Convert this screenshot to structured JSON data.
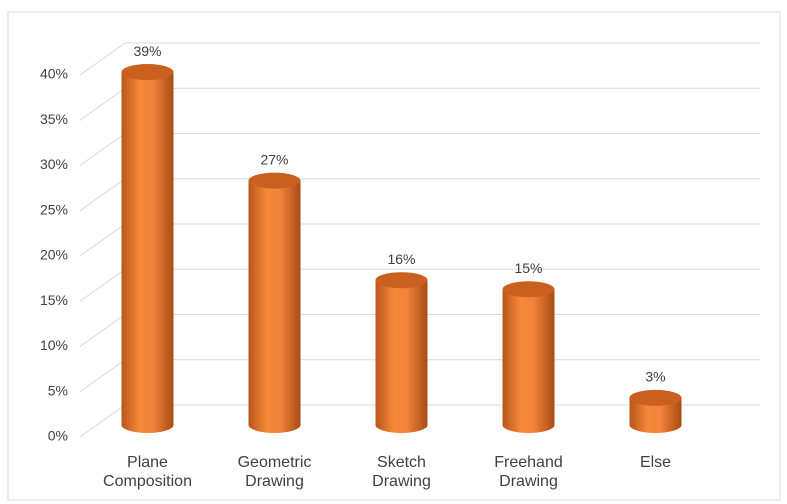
{
  "chart_data": {
    "type": "bar3d",
    "categories": [
      "Plane Composition",
      "Geometric Drawing",
      "Sketch Drawing",
      "Freehand Drawing",
      "Else"
    ],
    "values": [
      39,
      27,
      16,
      15,
      3
    ],
    "value_labels": [
      "39%",
      "27%",
      "16%",
      "15%",
      "3%"
    ],
    "color": "#f07f2a",
    "ylim": [
      0,
      40
    ],
    "yticks": [
      {
        "value": 0,
        "label": "0%"
      },
      {
        "value": 5,
        "label": "5%"
      },
      {
        "value": 10,
        "label": "10%"
      },
      {
        "value": 15,
        "label": "15%"
      },
      {
        "value": 20,
        "label": "20%"
      },
      {
        "value": 25,
        "label": "25%"
      },
      {
        "value": 30,
        "label": "30%"
      },
      {
        "value": 35,
        "label": "35%"
      },
      {
        "value": 40,
        "label": "40%"
      }
    ],
    "grid": true
  }
}
